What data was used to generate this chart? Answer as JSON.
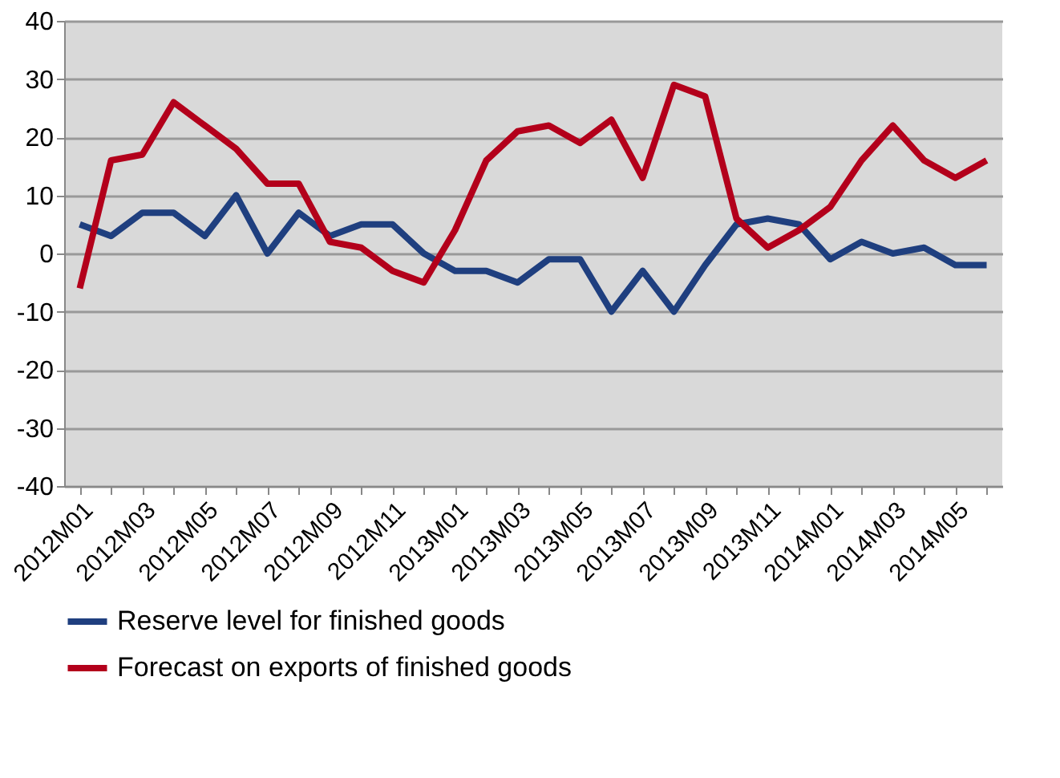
{
  "chart_data": {
    "type": "line",
    "categories": [
      "2012M01",
      null,
      "2012M03",
      null,
      "2012M05",
      null,
      "2012M07",
      null,
      "2012M09",
      null,
      "2012M11",
      null,
      "2013M01",
      null,
      "2013M03",
      null,
      "2013M05",
      null,
      "2013M07",
      null,
      "2013M09",
      null,
      "2013M11",
      null,
      "2014M01",
      null,
      "2014M03",
      null,
      "2014M05",
      null
    ],
    "series": [
      {
        "name": "Reserve level for finished goods",
        "color": "#1f3f7f",
        "values": [
          5,
          3,
          7,
          7,
          3,
          10,
          0,
          7,
          3,
          5,
          5,
          0,
          -3,
          -3,
          -5,
          -1,
          -1,
          -10,
          -3,
          -10,
          -2,
          5,
          6,
          5,
          -1,
          2,
          0,
          1,
          -2,
          -2
        ]
      },
      {
        "name": "Forecast on exports of finished goods",
        "color": "#b3001b",
        "values": [
          -6,
          16,
          17,
          26,
          22,
          18,
          12,
          12,
          2,
          1,
          -3,
          -5,
          4,
          16,
          21,
          22,
          19,
          23,
          13,
          29,
          27,
          6,
          1,
          4,
          8,
          16,
          22,
          16,
          13,
          16
        ]
      }
    ],
    "ylim": [
      -40,
      40
    ],
    "yticks": [
      -40,
      -30,
      -20,
      -10,
      0,
      10,
      20,
      30,
      40
    ],
    "grid": "y",
    "legend": "bottom",
    "marker": "none",
    "line_style": "solid"
  }
}
